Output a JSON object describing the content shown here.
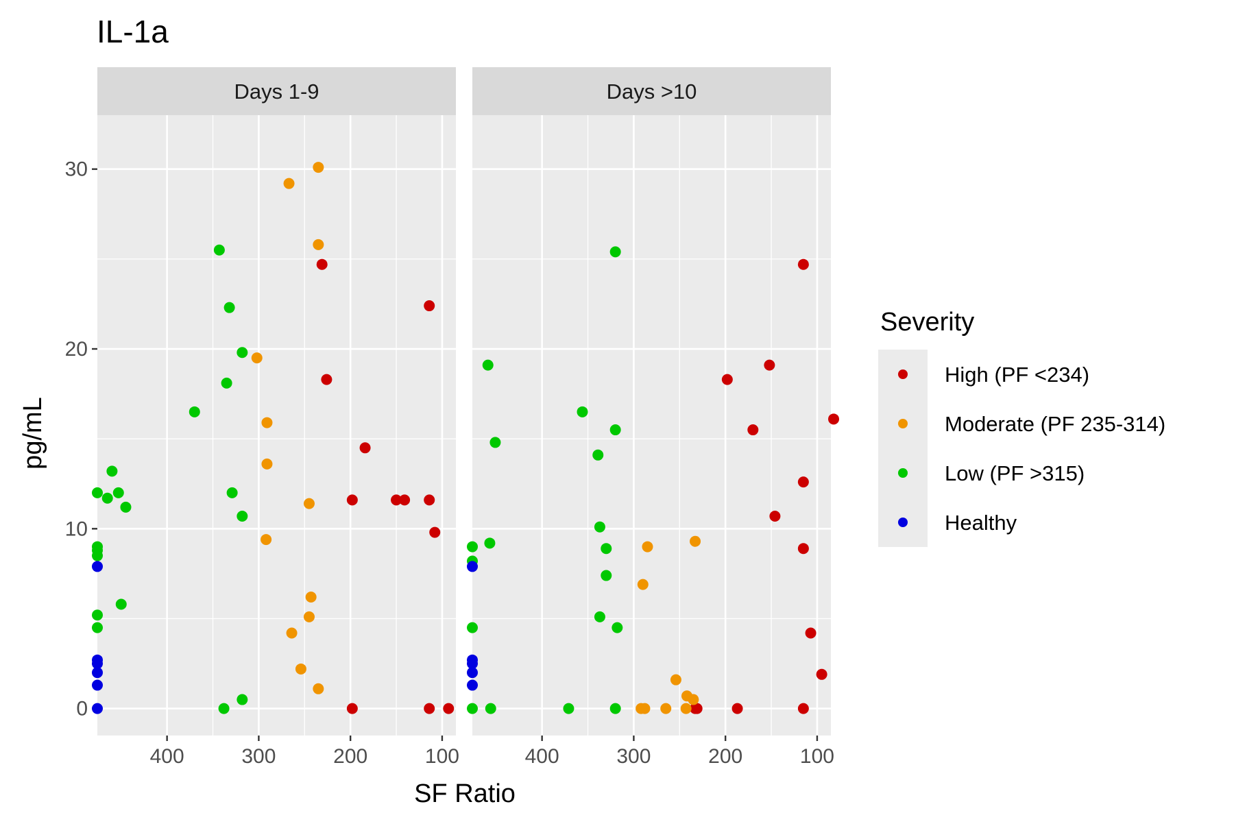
{
  "chart_data": {
    "type": "scatter",
    "title": "IL-1a",
    "xlabel": "SF Ratio",
    "ylabel": "pg/mL",
    "x_reversed": true,
    "xlim": [
      476,
      85
    ],
    "ylim": [
      -1.5,
      33
    ],
    "x_ticks": [
      400,
      300,
      200,
      100
    ],
    "y_ticks": [
      0,
      10,
      20,
      30
    ],
    "grid": true,
    "legend": {
      "title": "Severity",
      "placement": "right",
      "entries": [
        {
          "label": "High (PF <234)",
          "color": "#cc0000"
        },
        {
          "label": "Moderate (PF 235-314)",
          "color": "#f09400"
        },
        {
          "label": "Low (PF >315)",
          "color": "#00c800"
        },
        {
          "label": "Healthy",
          "color": "#0000e0"
        }
      ]
    },
    "facets": [
      {
        "label": "Days 1-9",
        "series": [
          {
            "name": "High (PF <234)",
            "points": [
              [
                231,
                24.7
              ],
              [
                114,
                22.4
              ],
              [
                226,
                18.3
              ],
              [
                184,
                14.5
              ],
              [
                198,
                11.6
              ],
              [
                150,
                11.6
              ],
              [
                141,
                11.6
              ],
              [
                114,
                11.6
              ],
              [
                108,
                9.8
              ],
              [
                198,
                0
              ],
              [
                114,
                0
              ],
              [
                93,
                0
              ]
            ]
          },
          {
            "name": "Moderate (PF 235-314)",
            "points": [
              [
                235,
                30.1
              ],
              [
                267,
                29.2
              ],
              [
                235,
                25.8
              ],
              [
                302,
                19.5
              ],
              [
                291,
                15.9
              ],
              [
                291,
                13.6
              ],
              [
                245,
                11.4
              ],
              [
                292,
                9.4
              ],
              [
                243,
                6.2
              ],
              [
                245,
                5.1
              ],
              [
                264,
                4.2
              ],
              [
                254,
                2.2
              ],
              [
                235,
                1.1
              ]
            ]
          },
          {
            "name": "Low (PF >315)",
            "points": [
              [
                343,
                25.5
              ],
              [
                332,
                22.3
              ],
              [
                318,
                19.8
              ],
              [
                335,
                18.1
              ],
              [
                370,
                16.5
              ],
              [
                460,
                13.2
              ],
              [
                476,
                12.0
              ],
              [
                453,
                12.0
              ],
              [
                465,
                11.7
              ],
              [
                445,
                11.2
              ],
              [
                329,
                12.0
              ],
              [
                318,
                10.7
              ],
              [
                476,
                9.0
              ],
              [
                476,
                8.8
              ],
              [
                476,
                8.5
              ],
              [
                450,
                5.8
              ],
              [
                476,
                5.2
              ],
              [
                476,
                4.5
              ],
              [
                338,
                0
              ],
              [
                318,
                0.5
              ]
            ]
          },
          {
            "name": "Healthy",
            "points": [
              [
                476,
                7.9
              ],
              [
                476,
                2.7
              ],
              [
                476,
                2.5
              ],
              [
                476,
                2.0
              ],
              [
                476,
                1.3
              ],
              [
                476,
                0
              ]
            ]
          }
        ]
      },
      {
        "label": "Days >10",
        "series": [
          {
            "name": "High (PF <234)",
            "points": [
              [
                115,
                24.7
              ],
              [
                152,
                19.1
              ],
              [
                198,
                18.3
              ],
              [
                170,
                15.5
              ],
              [
                82,
                16.1
              ],
              [
                115,
                12.6
              ],
              [
                146,
                10.7
              ],
              [
                115,
                8.9
              ],
              [
                107,
                4.2
              ],
              [
                95,
                1.9
              ],
              [
                187,
                0
              ],
              [
                115,
                0
              ],
              [
                231,
                0
              ],
              [
                233,
                0
              ]
            ]
          },
          {
            "name": "Moderate (PF 235-314)",
            "points": [
              [
                233,
                9.3
              ],
              [
                285,
                9.0
              ],
              [
                290,
                6.9
              ],
              [
                254,
                1.6
              ],
              [
                242,
                0.7
              ],
              [
                235,
                0.5
              ],
              [
                243,
                0
              ],
              [
                265,
                0
              ],
              [
                288,
                0
              ],
              [
                292,
                0
              ]
            ]
          },
          {
            "name": "Low (PF >315)",
            "points": [
              [
                320,
                25.4
              ],
              [
                459,
                19.1
              ],
              [
                356,
                16.5
              ],
              [
                320,
                15.5
              ],
              [
                451,
                14.8
              ],
              [
                339,
                14.1
              ],
              [
                337,
                10.1
              ],
              [
                457,
                9.2
              ],
              [
                476,
                9.0
              ],
              [
                330,
                8.9
              ],
              [
                476,
                8.2
              ],
              [
                330,
                7.4
              ],
              [
                337,
                5.1
              ],
              [
                476,
                4.5
              ],
              [
                318,
                4.5
              ],
              [
                476,
                0
              ],
              [
                456,
                0
              ],
              [
                371,
                0
              ],
              [
                320,
                0
              ]
            ]
          },
          {
            "name": "Healthy",
            "points": [
              [
                476,
                7.9
              ],
              [
                476,
                2.7
              ],
              [
                476,
                2.5
              ],
              [
                476,
                2.0
              ],
              [
                476,
                1.3
              ]
            ]
          }
        ]
      }
    ]
  }
}
